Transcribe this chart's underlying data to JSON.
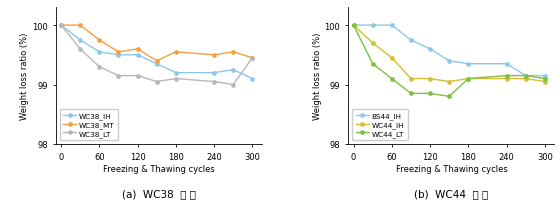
{
  "x": [
    0,
    30,
    60,
    90,
    120,
    150,
    180,
    240,
    270,
    300
  ],
  "chart_a": {
    "caption": "(a)  WC38  배 합",
    "WC38_IH": [
      100,
      99.75,
      99.55,
      99.5,
      99.5,
      99.35,
      99.2,
      99.2,
      99.25,
      99.1
    ],
    "WC38_MT": [
      100,
      100,
      99.75,
      99.55,
      99.6,
      99.4,
      99.55,
      99.5,
      99.55,
      99.45
    ],
    "WC38_LT": [
      100,
      99.6,
      99.3,
      99.15,
      99.15,
      99.05,
      99.1,
      99.05,
      99.0,
      99.45
    ],
    "colors": {
      "WC38_IH": "#8ec8e8",
      "WC38_MT": "#f4a040",
      "WC38_LT": "#b8b8b8"
    },
    "legend_labels": [
      "WC38_IH",
      "WC38_MT",
      "WC38_LT"
    ]
  },
  "chart_b": {
    "caption": "(b)  WC44  배 합",
    "BS44_IH": [
      100,
      100,
      100,
      99.75,
      99.6,
      99.4,
      99.35,
      99.35,
      99.15,
      99.15
    ],
    "WC44_IH": [
      100,
      99.7,
      99.45,
      99.1,
      99.1,
      99.05,
      99.1,
      99.1,
      99.1,
      99.05
    ],
    "WC44_LT": [
      100,
      99.35,
      99.1,
      98.85,
      98.85,
      98.8,
      99.1,
      99.15,
      99.15,
      99.1
    ],
    "colors": {
      "BS44_IH": "#8ec8e8",
      "WC44_IH": "#d4c030",
      "WC44_LT": "#80c040"
    },
    "legend_labels": [
      "BS44_IH",
      "WC44_IH",
      "WC44_LT"
    ]
  },
  "ylim": [
    98,
    100.3
  ],
  "yticks": [
    98,
    99,
    100
  ],
  "xticks": [
    0,
    60,
    120,
    180,
    240,
    300
  ],
  "xlabel": "Freezing & Thawing cycles",
  "ylabel": "Weight loss ratio (%)",
  "marker": "o",
  "markersize": 2.8,
  "linewidth": 1.0,
  "tick_labelsize": 6.0,
  "axis_labelsize": 6.0,
  "legend_fontsize": 5.2,
  "caption_fontsize": 7.5
}
